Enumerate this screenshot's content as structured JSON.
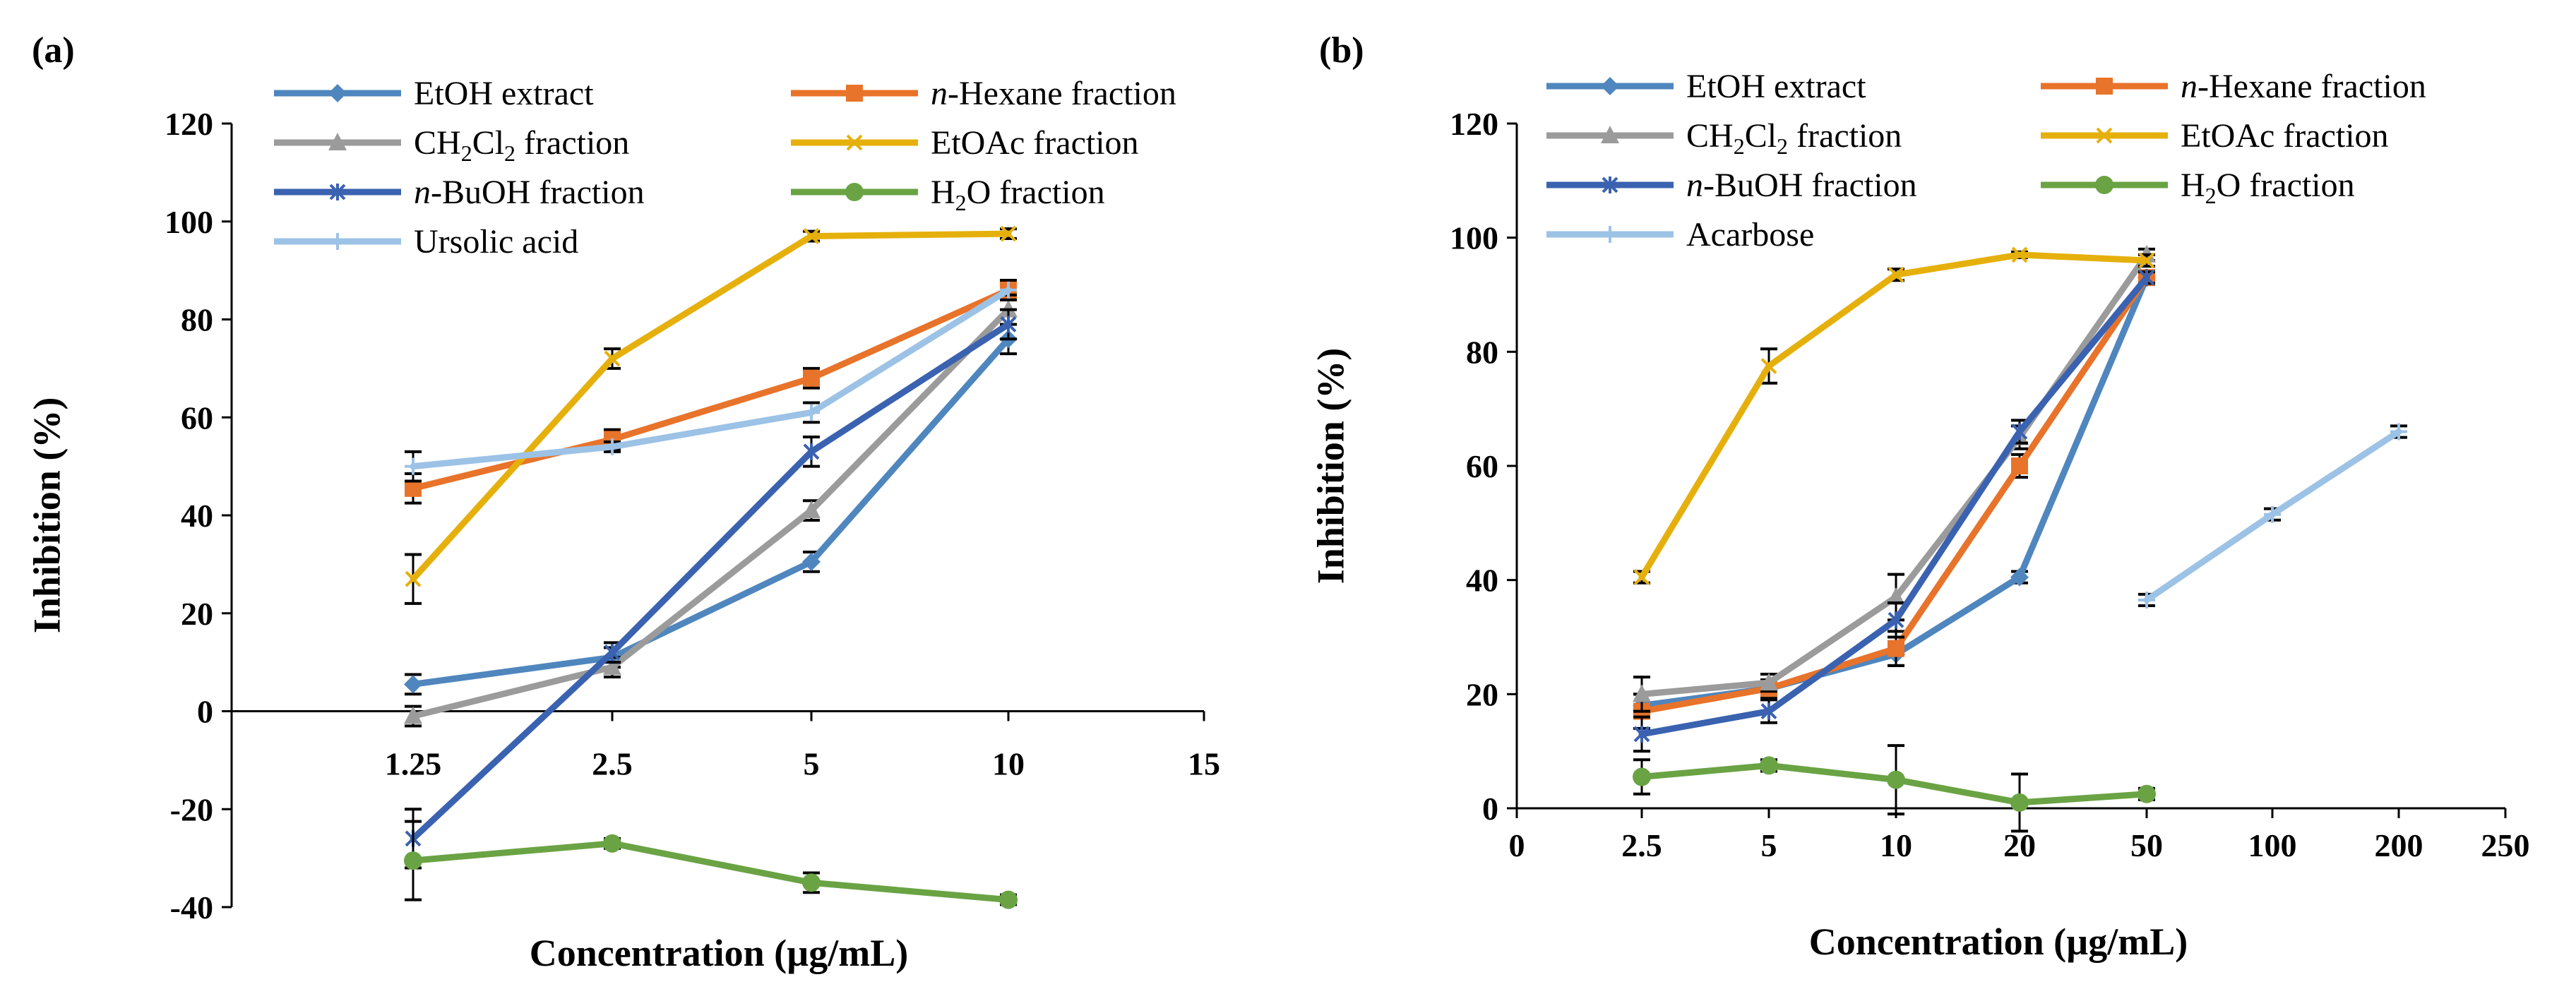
{
  "chart_data": [
    {
      "panel_label": "(a)",
      "type": "line",
      "xlabel": "Concentration (µg/mL)",
      "ylabel": "Inhibition (%)",
      "ylim": [
        -40,
        120
      ],
      "yticks": [
        "-40",
        "-20",
        "0",
        "20",
        "40",
        "60",
        "80",
        "100",
        "120"
      ],
      "xticks": [
        "1.25",
        "2.5",
        "5",
        "10",
        "15"
      ],
      "grid": false,
      "legend": [
        {
          "prefix": "",
          "name": "EtOH  extract",
          "sub": "",
          "tail": ""
        },
        {
          "prefix": "n",
          "name": "-Hexane  fraction",
          "sub": "",
          "tail": ""
        },
        {
          "prefix": "",
          "name": "CH",
          "sub": "2",
          "tail": "Cl2  fraction"
        },
        {
          "prefix": "",
          "name": "EtOAc  fraction",
          "sub": "",
          "tail": ""
        },
        {
          "prefix": "n",
          "name": "-BuOH  fraction",
          "sub": "",
          "tail": ""
        },
        {
          "prefix": "",
          "name": "H",
          "sub": "2",
          "tail": "O  fraction"
        },
        {
          "prefix": "",
          "name": "Ursolic acid",
          "sub": "",
          "tail": ""
        }
      ],
      "series": [
        {
          "name": "EtOH extract",
          "color": "#4F86BE",
          "marker": "diamond",
          "x": [
            "1.25",
            "2.5",
            "5",
            "10"
          ],
          "values": [
            5.5,
            11,
            30.5,
            76
          ],
          "err": [
            2,
            2,
            2,
            3
          ]
        },
        {
          "name": "n-Hexane fraction",
          "color": "#E8732A",
          "marker": "square",
          "x": [
            "1.25",
            "2.5",
            "5",
            "10"
          ],
          "values": [
            45.5,
            55.5,
            68,
            86
          ],
          "err": [
            3,
            2,
            2,
            2
          ]
        },
        {
          "name": "CH2Cl2 fraction",
          "color": "#9B9B9B",
          "marker": "triangle",
          "x": [
            "1.25",
            "2.5",
            "5",
            "10"
          ],
          "values": [
            -1,
            9,
            41,
            82
          ],
          "err": [
            2,
            2,
            2,
            3
          ]
        },
        {
          "name": "EtOAc fraction",
          "color": "#E6B00C",
          "marker": "x",
          "x": [
            "1.25",
            "2.5",
            "5",
            "10"
          ],
          "values": [
            27,
            72,
            97,
            97.5
          ],
          "err": [
            5,
            2,
            1,
            1
          ]
        },
        {
          "name": "n-BuOH fraction",
          "color": "#3A62B0",
          "marker": "asterisk",
          "x": [
            "1.25",
            "2.5",
            "5",
            "10"
          ],
          "values": [
            -26,
            12,
            53,
            79
          ],
          "err": [
            6,
            2,
            3,
            3
          ]
        },
        {
          "name": "H2O fraction",
          "color": "#6AA344",
          "marker": "circle",
          "x": [
            "1.25",
            "2.5",
            "5",
            "10"
          ],
          "values": [
            -30.5,
            -27,
            -35,
            -38.5
          ],
          "err": [
            8,
            1,
            2,
            1
          ]
        },
        {
          "name": "Ursolic acid",
          "color": "#9CC2E6",
          "marker": "plus",
          "x": [
            "1.25",
            "2.5",
            "5",
            "10"
          ],
          "values": [
            50,
            54,
            61,
            86
          ],
          "err": [
            3,
            1,
            2,
            2
          ]
        }
      ]
    },
    {
      "panel_label": "(b)",
      "type": "line",
      "xlabel": "Concentration (µg/mL)",
      "ylabel": "Inhibition (%)",
      "ylim": [
        0,
        120
      ],
      "yticks": [
        "0",
        "20",
        "40",
        "60",
        "80",
        "100",
        "120"
      ],
      "xticks": [
        "0",
        "2.5",
        "5",
        "10",
        "20",
        "50",
        "100",
        "200",
        "250"
      ],
      "grid": false,
      "legend": [
        {
          "prefix": "",
          "name": "EtOH  extract",
          "sub": "",
          "tail": ""
        },
        {
          "prefix": "n",
          "name": "-Hexane  fraction",
          "sub": "",
          "tail": ""
        },
        {
          "prefix": "",
          "name": "CH",
          "sub": "2",
          "tail": "Cl2  fraction"
        },
        {
          "prefix": "",
          "name": "EtOAc  fraction",
          "sub": "",
          "tail": ""
        },
        {
          "prefix": "n",
          "name": "-BuOH  fraction",
          "sub": "",
          "tail": ""
        },
        {
          "prefix": "",
          "name": "H",
          "sub": "2",
          "tail": "O  fraction"
        },
        {
          "prefix": "",
          "name": "Acarbose",
          "sub": "",
          "tail": ""
        }
      ],
      "series": [
        {
          "name": "EtOH extract",
          "color": "#4F86BE",
          "marker": "diamond",
          "x": [
            "2.5",
            "5",
            "10",
            "20",
            "50"
          ],
          "values": [
            18,
            21,
            27,
            40.5,
            93
          ],
          "err": [
            2,
            1.5,
            2,
            1,
            1
          ]
        },
        {
          "name": "n-Hexane fraction",
          "color": "#E8732A",
          "marker": "square",
          "x": [
            "2.5",
            "5",
            "10",
            "20",
            "50"
          ],
          "values": [
            17,
            21,
            28,
            60,
            93
          ],
          "err": [
            3,
            1.5,
            3,
            2,
            1
          ]
        },
        {
          "name": "CH2Cl2 fraction",
          "color": "#9B9B9B",
          "marker": "triangle",
          "x": [
            "2.5",
            "5",
            "10",
            "20",
            "50"
          ],
          "values": [
            20,
            22,
            37,
            65,
            97
          ],
          "err": [
            3,
            1.5,
            4,
            2,
            1
          ]
        },
        {
          "name": "EtOAc fraction",
          "color": "#E6B00C",
          "marker": "x",
          "x": [
            "2.5",
            "5",
            "10",
            "20",
            "50"
          ],
          "values": [
            40.5,
            77.5,
            93.5,
            97,
            96
          ],
          "err": [
            1,
            3,
            1,
            0.5,
            1
          ]
        },
        {
          "name": "n-BuOH fraction",
          "color": "#3A62B0",
          "marker": "asterisk",
          "x": [
            "2.5",
            "5",
            "10",
            "20",
            "50"
          ],
          "values": [
            13,
            17,
            33,
            66,
            93
          ],
          "err": [
            3,
            2,
            3,
            2,
            1
          ]
        },
        {
          "name": "H2O fraction",
          "color": "#6AA344",
          "marker": "circle",
          "x": [
            "2.5",
            "5",
            "10",
            "20",
            "50"
          ],
          "values": [
            5.5,
            7.5,
            5,
            1,
            2.5
          ],
          "err": [
            3,
            1,
            6,
            5,
            1
          ]
        },
        {
          "name": "Acarbose",
          "color": "#9CC2E6",
          "marker": "plus",
          "x": [
            "50",
            "100",
            "200"
          ],
          "values": [
            36.5,
            51.5,
            66
          ],
          "err": [
            1,
            1,
            1
          ]
        }
      ]
    }
  ]
}
